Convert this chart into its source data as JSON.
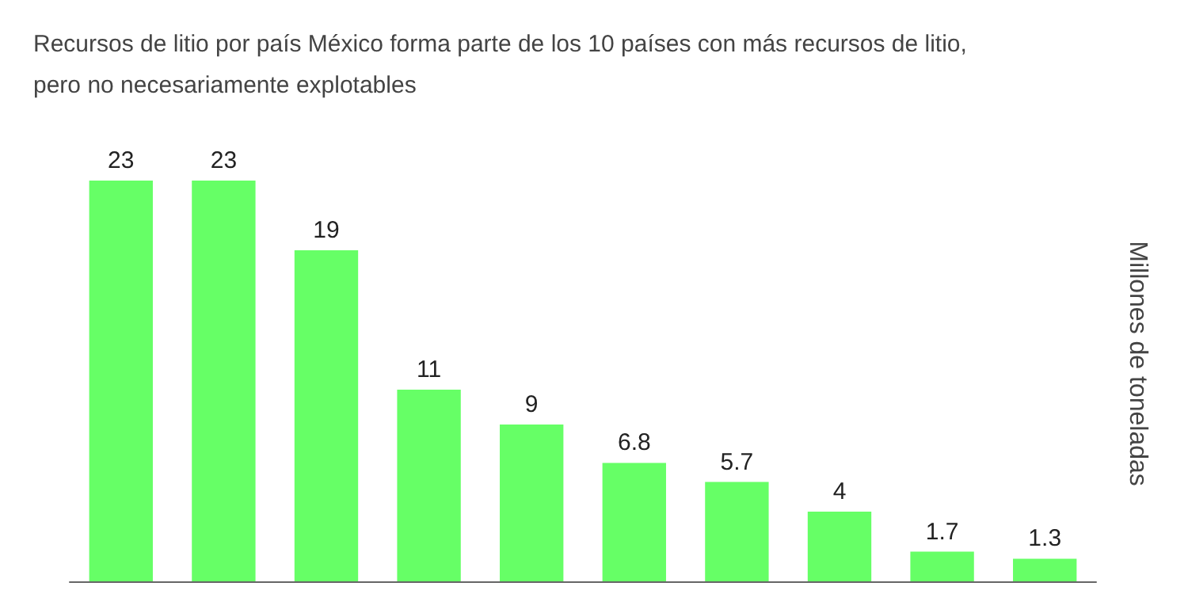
{
  "chart_data": {
    "type": "bar",
    "title": "Recursos de litio por país México forma parte de los 10 países con más recursos de litio, pero no necesariamente explotables",
    "ylabel": "Millones de toneladas",
    "categories": [
      null,
      null,
      null,
      null,
      null,
      null,
      null,
      null,
      null,
      null
    ],
    "values": [
      23,
      23,
      19,
      11,
      9,
      6.8,
      5.7,
      4,
      1.7,
      1.3
    ],
    "color": "#66ff66",
    "data_labels": true
  }
}
